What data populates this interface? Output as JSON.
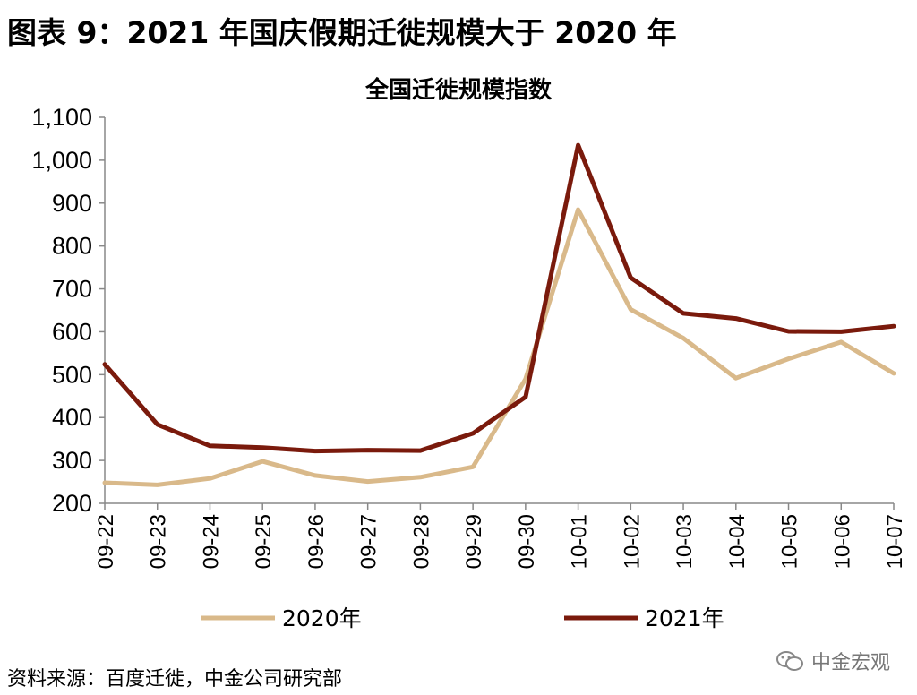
{
  "figure_title": "图表 9：2021 年国庆假期迁徙规模大于 2020 年",
  "source": "资料来源：百度迁徙，中金公司研究部",
  "watermark": "中金宏观",
  "chart_data": {
    "type": "line",
    "title": "全国迁徙规模指数",
    "xlabel": "",
    "ylabel": "",
    "categories": [
      "09-22",
      "09-23",
      "09-24",
      "09-25",
      "09-26",
      "09-27",
      "09-28",
      "09-29",
      "09-30",
      "10-01",
      "10-02",
      "10-03",
      "10-04",
      "10-05",
      "10-06",
      "10-07"
    ],
    "ylim": [
      200,
      1100
    ],
    "yticks": [
      200,
      300,
      400,
      500,
      600,
      700,
      800,
      900,
      1000,
      1100
    ],
    "ytick_labels": [
      "200",
      "300",
      "400",
      "500",
      "600",
      "700",
      "800",
      "900",
      "1,000",
      "1,100"
    ],
    "grid": false,
    "legend_position": "bottom",
    "series": [
      {
        "name": "2020年",
        "color": "#d9b98a",
        "values": [
          248,
          243,
          258,
          298,
          265,
          251,
          261,
          285,
          490,
          885,
          652,
          585,
          492,
          537,
          576,
          503
        ]
      },
      {
        "name": "2021年",
        "color": "#7a1a0c",
        "values": [
          524,
          384,
          334,
          330,
          322,
          324,
          323,
          363,
          448,
          1035,
          726,
          643,
          631,
          601,
          600,
          613
        ]
      }
    ]
  }
}
